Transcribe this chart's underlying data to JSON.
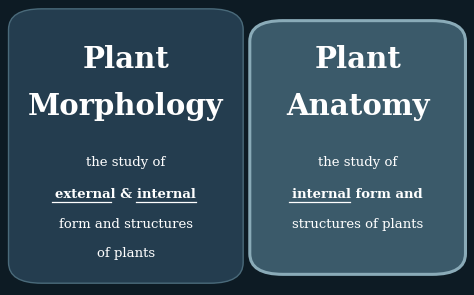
{
  "bg_color": "#0d1b24",
  "left_panel_color": "#243d4f",
  "right_panel_color": "#3b5a6a",
  "right_panel_border_color": "#8aabb8",
  "left_panel_border_color": "#4a6a7a",
  "text_color": "#ffffff",
  "title1_line1": "Plant",
  "title1_line2": "Morphology",
  "title2_line1": "Plant",
  "title2_line2": "Anatomy",
  "desc1_line1": "the study of",
  "desc1_line2a": "external",
  "desc1_line2b": " & ",
  "desc1_line2c": "internal",
  "desc1_line3": "form and structures",
  "desc1_line4": "of plants",
  "desc2_line1": "the study of",
  "desc2_line2a": "internal",
  "desc2_line2b": " form and",
  "desc2_line3": "structures of plants",
  "figsize": [
    4.74,
    2.95
  ],
  "dpi": 100
}
